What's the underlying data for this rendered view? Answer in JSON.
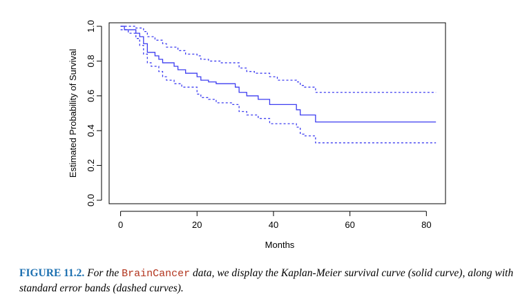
{
  "chart_data": {
    "type": "line",
    "xlabel": "Months",
    "ylabel": "Estimated Probability of Survival",
    "xlim": [
      -3,
      85
    ],
    "ylim": [
      -0.02,
      1.02
    ],
    "x_ticks": [
      0,
      20,
      40,
      60,
      80
    ],
    "y_ticks": [
      0.0,
      0.2,
      0.4,
      0.6,
      0.8,
      1.0
    ],
    "grid": false,
    "colors": {
      "curve": "#3c3cf0",
      "axis": "#000000"
    },
    "series": [
      {
        "style": "solid",
        "points": [
          [
            0,
            1.0
          ],
          [
            1,
            0.98
          ],
          [
            4,
            0.96
          ],
          [
            5,
            0.94
          ],
          [
            6,
            0.9
          ],
          [
            7,
            0.85
          ],
          [
            9,
            0.83
          ],
          [
            10,
            0.81
          ],
          [
            11,
            0.79
          ],
          [
            14,
            0.77
          ],
          [
            15,
            0.75
          ],
          [
            17,
            0.73
          ],
          [
            20,
            0.71
          ],
          [
            21,
            0.69
          ],
          [
            23,
            0.68
          ],
          [
            25,
            0.67
          ],
          [
            30,
            0.65
          ],
          [
            31,
            0.62
          ],
          [
            33,
            0.6
          ],
          [
            36,
            0.58
          ],
          [
            39,
            0.55
          ],
          [
            46,
            0.52
          ],
          [
            47,
            0.49
          ],
          [
            51,
            0.45
          ],
          [
            82.5,
            0.45
          ]
        ]
      },
      {
        "style": "dashed",
        "points": [
          [
            0,
            1.0
          ],
          [
            4,
            0.99
          ],
          [
            6,
            0.97
          ],
          [
            7,
            0.94
          ],
          [
            9,
            0.92
          ],
          [
            11,
            0.9
          ],
          [
            12,
            0.88
          ],
          [
            15,
            0.86
          ],
          [
            17,
            0.84
          ],
          [
            20,
            0.83
          ],
          [
            21,
            0.81
          ],
          [
            23,
            0.8
          ],
          [
            26,
            0.79
          ],
          [
            31,
            0.76
          ],
          [
            33,
            0.74
          ],
          [
            35,
            0.73
          ],
          [
            39,
            0.71
          ],
          [
            41,
            0.69
          ],
          [
            46,
            0.68
          ],
          [
            47,
            0.66
          ],
          [
            48,
            0.65
          ],
          [
            51,
            0.62
          ],
          [
            82.5,
            0.62
          ]
        ]
      },
      {
        "style": "dashed",
        "points": [
          [
            0,
            0.98
          ],
          [
            2,
            0.96
          ],
          [
            4,
            0.93
          ],
          [
            5,
            0.89
          ],
          [
            6,
            0.84
          ],
          [
            7,
            0.79
          ],
          [
            8,
            0.77
          ],
          [
            10,
            0.74
          ],
          [
            11,
            0.71
          ],
          [
            12,
            0.69
          ],
          [
            14,
            0.67
          ],
          [
            16,
            0.65
          ],
          [
            20,
            0.61
          ],
          [
            21,
            0.59
          ],
          [
            23,
            0.58
          ],
          [
            25,
            0.56
          ],
          [
            29,
            0.55
          ],
          [
            31,
            0.51
          ],
          [
            33,
            0.49
          ],
          [
            36,
            0.47
          ],
          [
            39,
            0.44
          ],
          [
            46,
            0.42
          ],
          [
            47,
            0.38
          ],
          [
            48,
            0.37
          ],
          [
            51,
            0.33
          ],
          [
            82.5,
            0.33
          ]
        ]
      }
    ]
  },
  "caption": {
    "figure_label": "FIGURE 11.2.",
    "text_before": " For the ",
    "dataset_name": "BrainCancer",
    "text_after": " data, we display the Kaplan-Meier survival curve (solid curve), along with standard error bands (dashed curves)."
  }
}
